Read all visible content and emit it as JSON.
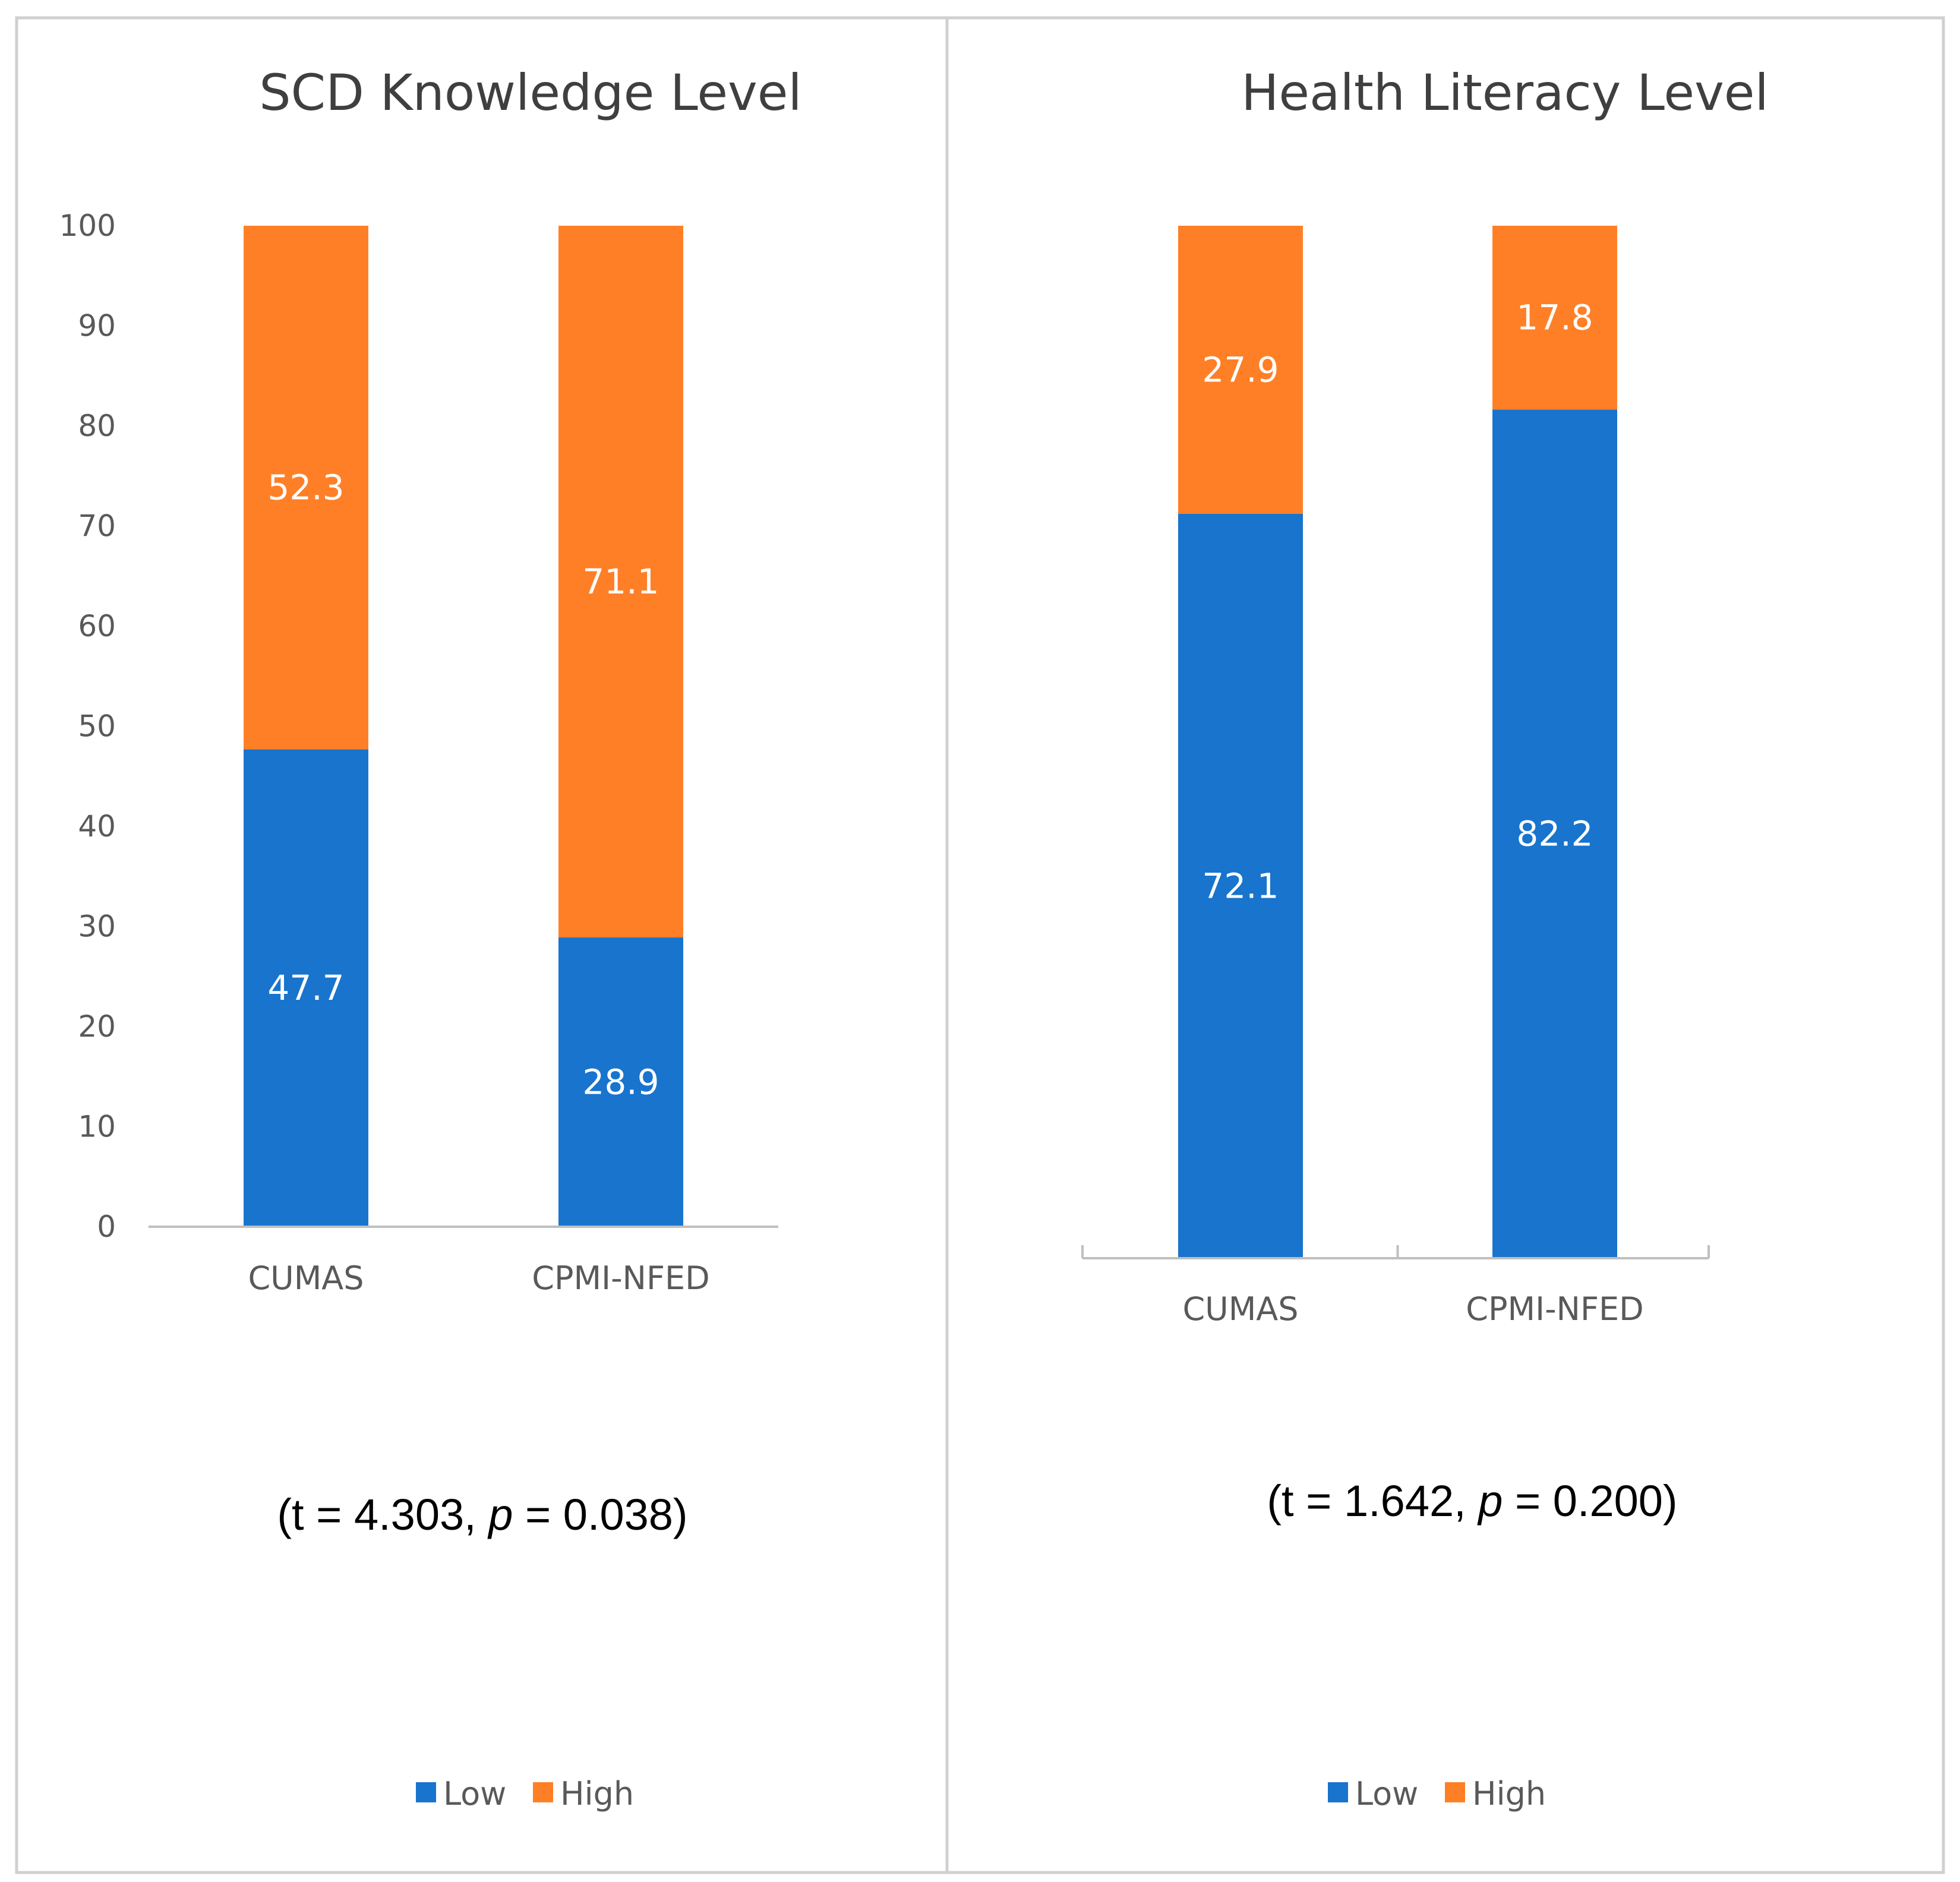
{
  "colors": {
    "low": "#1874CD",
    "high": "#FF7F27",
    "panel_border": "#d0d0d0",
    "axis": "#bfbfbf"
  },
  "chart_data": [
    {
      "type": "bar",
      "stacked": true,
      "title": "SCD Knowledge Level",
      "categories": [
        "CUMAS",
        "CPMI-NFED"
      ],
      "series": [
        {
          "name": "Low",
          "values": [
            47.7,
            28.9
          ]
        },
        {
          "name": "High",
          "values": [
            52.3,
            71.1
          ]
        }
      ],
      "ylim": [
        0,
        100
      ],
      "yticks": [
        0,
        10,
        20,
        30,
        40,
        50,
        60,
        70,
        80,
        90,
        100
      ],
      "show_y_axis": true,
      "data_labels": true,
      "legend_position": "bottom",
      "grid": false,
      "annotation": {
        "prefix": "(t = 4.303, ",
        "italic": "p",
        "suffix": " = 0.038)"
      }
    },
    {
      "type": "bar",
      "stacked": true,
      "title": "Health Literacy Level",
      "categories": [
        "CUMAS",
        "CPMI-NFED"
      ],
      "series": [
        {
          "name": "Low",
          "values": [
            72.1,
            82.2
          ]
        },
        {
          "name": "High",
          "values": [
            27.9,
            17.8
          ]
        }
      ],
      "ylim": [
        0,
        100
      ],
      "show_y_axis": false,
      "data_labels": true,
      "legend_position": "bottom",
      "grid": false,
      "annotation": {
        "prefix": "(t = 1.642, ",
        "italic": "p",
        "suffix": " = 0.200)"
      }
    }
  ]
}
